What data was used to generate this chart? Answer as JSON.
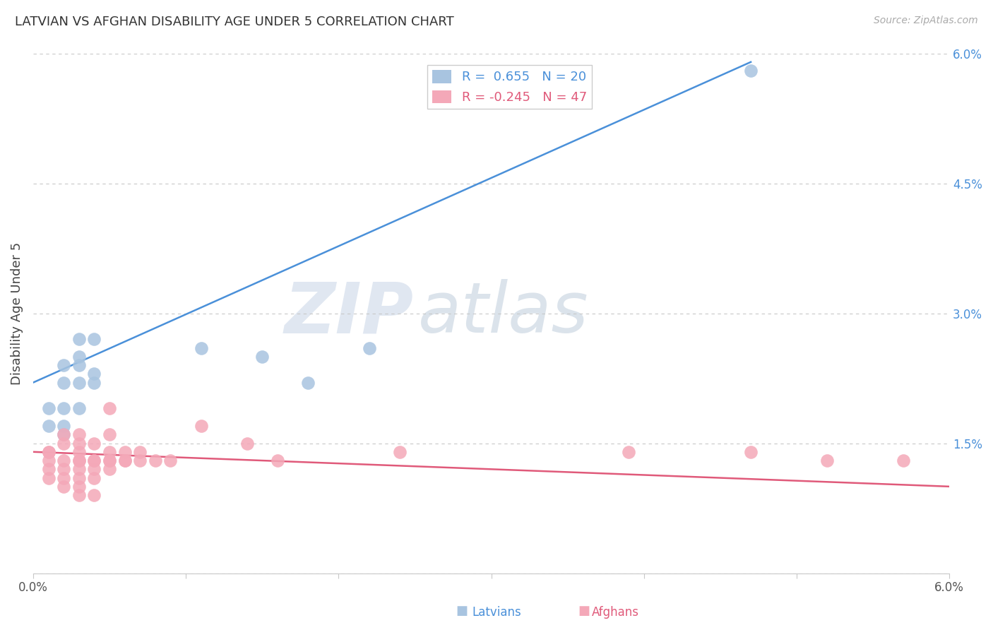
{
  "title": "LATVIAN VS AFGHAN DISABILITY AGE UNDER 5 CORRELATION CHART",
  "source": "Source: ZipAtlas.com",
  "ylabel": "Disability Age Under 5",
  "xlim": [
    0.0,
    0.06
  ],
  "ylim": [
    0.0,
    0.06
  ],
  "right_yticks": [
    0.0,
    0.015,
    0.03,
    0.045,
    0.06
  ],
  "right_yticklabels": [
    "",
    "1.5%",
    "3.0%",
    "4.5%",
    "6.0%"
  ],
  "bottom_xticks": [
    0.0,
    0.01,
    0.02,
    0.03,
    0.04,
    0.05,
    0.06
  ],
  "bottom_xticklabels": [
    "0.0%",
    "",
    "",
    "",
    "",
    "",
    "6.0%"
  ],
  "watermark_zip": "ZIP",
  "watermark_atlas": "atlas",
  "latvian_color": "#a8c4e0",
  "afghan_color": "#f4a8b8",
  "latvian_line_color": "#4a90d9",
  "afghan_line_color": "#e05a7a",
  "latvian_R": 0.655,
  "latvian_N": 20,
  "afghan_R": -0.245,
  "afghan_N": 47,
  "latvian_line_x": [
    0.0,
    0.047
  ],
  "latvian_line_y": [
    0.022,
    0.059
  ],
  "afghan_line_x": [
    0.0,
    0.06
  ],
  "afghan_line_y": [
    0.014,
    0.01
  ],
  "latvian_points": [
    [
      0.001,
      0.019
    ],
    [
      0.001,
      0.017
    ],
    [
      0.002,
      0.024
    ],
    [
      0.002,
      0.022
    ],
    [
      0.002,
      0.019
    ],
    [
      0.002,
      0.017
    ],
    [
      0.002,
      0.016
    ],
    [
      0.003,
      0.027
    ],
    [
      0.003,
      0.025
    ],
    [
      0.003,
      0.024
    ],
    [
      0.003,
      0.022
    ],
    [
      0.003,
      0.019
    ],
    [
      0.004,
      0.027
    ],
    [
      0.004,
      0.023
    ],
    [
      0.004,
      0.022
    ],
    [
      0.011,
      0.026
    ],
    [
      0.015,
      0.025
    ],
    [
      0.018,
      0.022
    ],
    [
      0.022,
      0.026
    ],
    [
      0.047,
      0.058
    ]
  ],
  "afghan_points": [
    [
      0.001,
      0.014
    ],
    [
      0.001,
      0.013
    ],
    [
      0.001,
      0.012
    ],
    [
      0.001,
      0.011
    ],
    [
      0.001,
      0.014
    ],
    [
      0.002,
      0.016
    ],
    [
      0.002,
      0.015
    ],
    [
      0.002,
      0.013
    ],
    [
      0.002,
      0.012
    ],
    [
      0.002,
      0.011
    ],
    [
      0.002,
      0.01
    ],
    [
      0.003,
      0.016
    ],
    [
      0.003,
      0.015
    ],
    [
      0.003,
      0.014
    ],
    [
      0.003,
      0.013
    ],
    [
      0.003,
      0.013
    ],
    [
      0.003,
      0.012
    ],
    [
      0.003,
      0.011
    ],
    [
      0.003,
      0.01
    ],
    [
      0.003,
      0.009
    ],
    [
      0.004,
      0.015
    ],
    [
      0.004,
      0.013
    ],
    [
      0.004,
      0.013
    ],
    [
      0.004,
      0.012
    ],
    [
      0.004,
      0.011
    ],
    [
      0.004,
      0.009
    ],
    [
      0.005,
      0.019
    ],
    [
      0.005,
      0.016
    ],
    [
      0.005,
      0.014
    ],
    [
      0.005,
      0.013
    ],
    [
      0.005,
      0.013
    ],
    [
      0.005,
      0.012
    ],
    [
      0.006,
      0.014
    ],
    [
      0.006,
      0.013
    ],
    [
      0.006,
      0.013
    ],
    [
      0.007,
      0.014
    ],
    [
      0.007,
      0.013
    ],
    [
      0.008,
      0.013
    ],
    [
      0.009,
      0.013
    ],
    [
      0.011,
      0.017
    ],
    [
      0.014,
      0.015
    ],
    [
      0.016,
      0.013
    ],
    [
      0.024,
      0.014
    ],
    [
      0.039,
      0.014
    ],
    [
      0.047,
      0.014
    ],
    [
      0.052,
      0.013
    ],
    [
      0.057,
      0.013
    ]
  ],
  "background_color": "#ffffff",
  "grid_color": "#c8c8c8"
}
